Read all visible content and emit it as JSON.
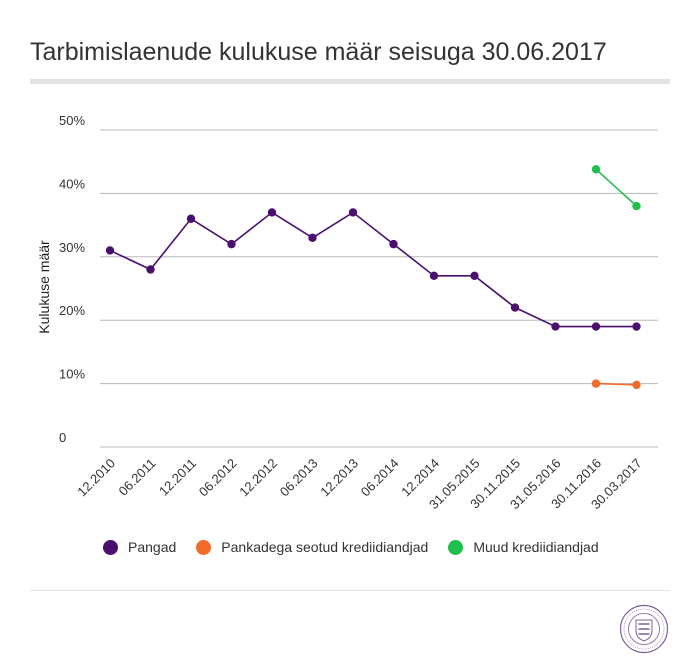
{
  "title": "Tarbimislaenude kulukuse määr seisuga 30.06.2017",
  "legend": {
    "items": [
      {
        "label": "Pangad",
        "color": "#4b0f6e"
      },
      {
        "label": "Pankadega seotud krediidiandjad",
        "color": "#f26b2a"
      },
      {
        "label": "Muud krediidiandjad",
        "color": "#1fbf4b"
      }
    ]
  },
  "logo": {
    "icon": "seal-logo-icon"
  },
  "chart_data": {
    "type": "line",
    "title": "Tarbimislaenude kulukuse määr seisuga 30.06.2017",
    "xlabel": "",
    "ylabel": "Kulukuse määr",
    "categories": [
      "12.2010",
      "06.2011",
      "12.2011",
      "06.2012",
      "12.2012",
      "06.2013",
      "12.2013",
      "06.2014",
      "12.2014",
      "31.05.2015",
      "30.11.2015",
      "31.05.2016",
      "30.11.2016",
      "30.03.2017"
    ],
    "yticks": [
      {
        "value": 0,
        "label": "0"
      },
      {
        "value": 10,
        "label": "10%"
      },
      {
        "value": 20,
        "label": "20%"
      },
      {
        "value": 30,
        "label": "30%"
      },
      {
        "value": 40,
        "label": "40%"
      },
      {
        "value": 50,
        "label": "50%"
      }
    ],
    "ylim": [
      0,
      50
    ],
    "grid": true,
    "legend_position": "bottom",
    "series": [
      {
        "name": "Pangad",
        "color": "#4b0f6e",
        "values": [
          31,
          28,
          36,
          32,
          37,
          33,
          37,
          32,
          27,
          27,
          22,
          19,
          19,
          19
        ]
      },
      {
        "name": "Pankadega seotud krediidiandjad",
        "color": "#f26b2a",
        "values": [
          null,
          null,
          null,
          null,
          null,
          null,
          null,
          null,
          null,
          null,
          null,
          null,
          10,
          9.8
        ]
      },
      {
        "name": "Muud krediidiandjad",
        "color": "#1fbf4b",
        "values": [
          null,
          null,
          null,
          null,
          null,
          null,
          null,
          null,
          null,
          null,
          null,
          null,
          43.8,
          38
        ]
      }
    ]
  }
}
